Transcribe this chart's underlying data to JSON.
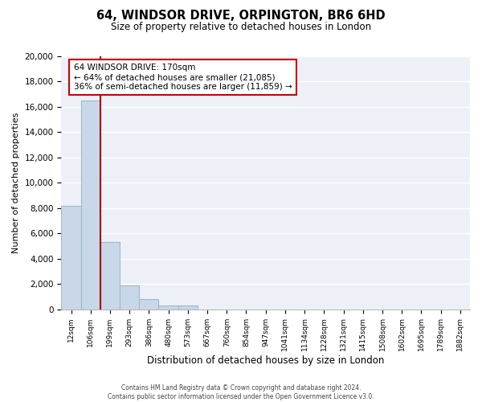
{
  "title_line1": "64, WINDSOR DRIVE, ORPINGTON, BR6 6HD",
  "title_line2": "Size of property relative to detached houses in London",
  "xlabel": "Distribution of detached houses by size in London",
  "ylabel": "Number of detached properties",
  "bar_color": "#c8d8e8",
  "bar_edge_color": "#a0b8cc",
  "marker_line_color": "#aa0000",
  "annotation_title": "64 WINDSOR DRIVE: 170sqm",
  "annotation_line1": "← 64% of detached houses are smaller (21,085)",
  "annotation_line2": "36% of semi-detached houses are larger (11,859) →",
  "categories": [
    "12sqm",
    "106sqm",
    "199sqm",
    "293sqm",
    "386sqm",
    "480sqm",
    "573sqm",
    "667sqm",
    "760sqm",
    "854sqm",
    "947sqm",
    "1041sqm",
    "1134sqm",
    "1228sqm",
    "1321sqm",
    "1415sqm",
    "1508sqm",
    "1602sqm",
    "1695sqm",
    "1789sqm",
    "1882sqm"
  ],
  "bar_heights": [
    8200,
    16500,
    5300,
    1850,
    780,
    300,
    300,
    0,
    0,
    0,
    0,
    0,
    0,
    0,
    0,
    0,
    0,
    0,
    0,
    0,
    0
  ],
  "ylim": [
    0,
    20000
  ],
  "yticks": [
    0,
    2000,
    4000,
    6000,
    8000,
    10000,
    12000,
    14000,
    16000,
    18000,
    20000
  ],
  "footer_line1": "Contains HM Land Registry data © Crown copyright and database right 2024.",
  "footer_line2": "Contains public sector information licensed under the Open Government Licence v3.0.",
  "background_color": "#ffffff",
  "plot_bg_color": "#edf1f7"
}
